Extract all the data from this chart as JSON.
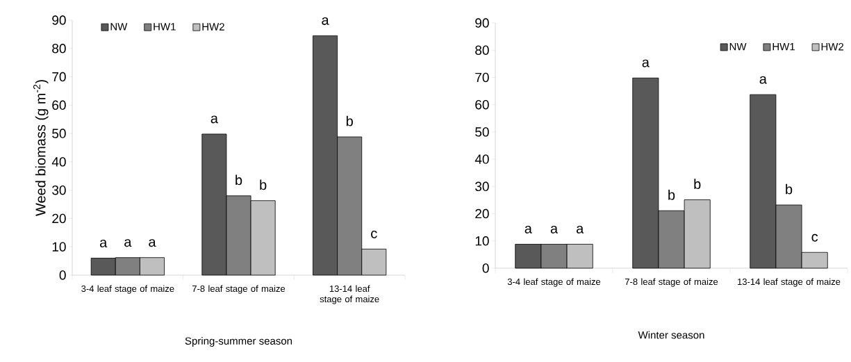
{
  "chart_data": [
    {
      "type": "bar",
      "categories": [
        "3-4 leaf stage of maize",
        "7-8 leaf stage of maize",
        "13-14 leaf stage of maize"
      ],
      "xlabel": "Spring-summer season",
      "ylabel": "Weed biomass (g m$^{-2}$)",
      "ylim": [
        0,
        90
      ],
      "yticks": [
        0,
        10,
        20,
        30,
        40,
        50,
        60,
        70,
        80,
        90
      ],
      "legend": "top left",
      "grid": false,
      "series": [
        {
          "name": "NW",
          "color": "#595959",
          "values": [
            6.0,
            49.8,
            84.5
          ],
          "value_labels": [
            "a",
            "a",
            "a"
          ]
        },
        {
          "name": "HW1",
          "color": "#808080",
          "values": [
            6.2,
            28.0,
            48.8
          ],
          "value_labels": [
            "a",
            "b",
            "b"
          ]
        },
        {
          "name": "HW2",
          "color": "#bfbfbf",
          "values": [
            6.2,
            26.3,
            9.2
          ],
          "value_labels": [
            "a",
            "b",
            "c"
          ]
        }
      ]
    },
    {
      "type": "bar",
      "categories": [
        "3-4 leaf stage of maize",
        "7-8 leaf stage of maize",
        "13-14 leaf stage of maize"
      ],
      "xlabel": "Winter season",
      "ylim": [
        0,
        90
      ],
      "yticks": [
        0,
        10,
        20,
        30,
        40,
        50,
        60,
        70,
        80,
        90
      ],
      "legend": "top right",
      "grid": false,
      "series": [
        {
          "name": "NW",
          "color": "#595959",
          "values": [
            8.8,
            69.8,
            63.7
          ],
          "value_labels": [
            "a",
            "a",
            "a"
          ]
        },
        {
          "name": "HW1",
          "color": "#808080",
          "values": [
            8.8,
            21.1,
            23.2
          ],
          "value_labels": [
            "a",
            "b",
            "b"
          ]
        },
        {
          "name": "HW2",
          "color": "#bfbfbf",
          "values": [
            8.8,
            25.1,
            5.8
          ],
          "value_labels": [
            "a",
            "b",
            "c"
          ]
        }
      ]
    }
  ]
}
